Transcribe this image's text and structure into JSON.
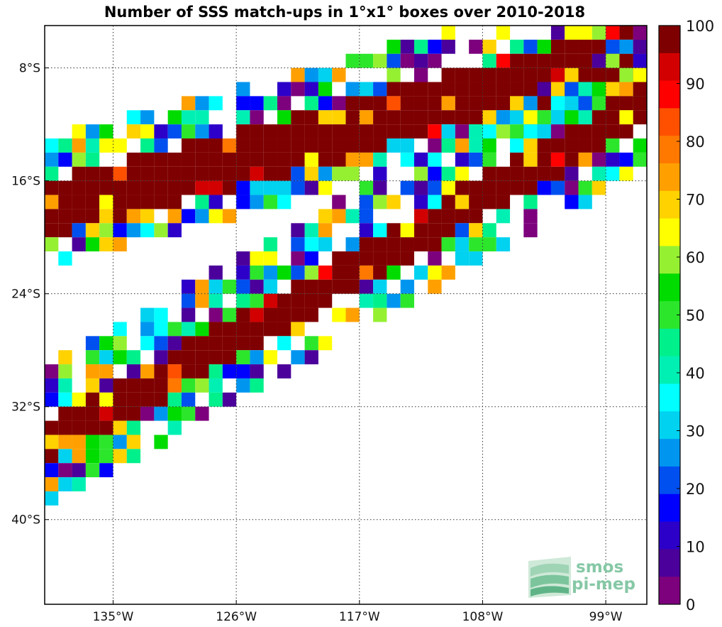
{
  "chart_data": {
    "type": "heatmap",
    "title": "Number of SSS match-ups in 1°x1° boxes over 2010-2018",
    "x_ticks": [
      "135°W",
      "126°W",
      "117°W",
      "108°W",
      "99°W"
    ],
    "y_ticks": [
      "8°S",
      "16°S",
      "24°S",
      "32°S",
      "40°S"
    ],
    "x_tick_values": [
      -135,
      -126,
      -117,
      -108,
      -99
    ],
    "y_tick_values": [
      -8,
      -16,
      -24,
      -32,
      -40
    ],
    "xlim": [
      -140,
      -96
    ],
    "ylim": [
      -46,
      -5
    ],
    "cell_size_deg": 1,
    "grid": true,
    "colorbar": {
      "ticks": [
        "0",
        "10",
        "20",
        "30",
        "40",
        "50",
        "60",
        "70",
        "80",
        "90",
        "100"
      ],
      "min": 0,
      "max": 100,
      "colors": [
        "#7d007d",
        "#4b009b",
        "#2c00c9",
        "#0000ff",
        "#0050f0",
        "#0096f0",
        "#00d2f0",
        "#00ffff",
        "#00f0b4",
        "#00f08c",
        "#2ce62c",
        "#00dc00",
        "#96f032",
        "#ffff00",
        "#ffd200",
        "#ffa000",
        "#ff7800",
        "#ff5000",
        "#ff0000",
        "#d20000",
        "#7f0000"
      ],
      "location": "right"
    },
    "swaths": [
      {
        "description": "upper band",
        "top_left": [
          -140,
          -14
        ],
        "slope": -0.26,
        "width": 9,
        "core_width": 4
      },
      {
        "description": "lower band",
        "top_left": [
          -140,
          -30
        ],
        "slope": -0.55,
        "width": 10,
        "core_width": 3
      }
    ]
  },
  "logo": {
    "line1": "smos",
    "line2": "pi-mep"
  }
}
